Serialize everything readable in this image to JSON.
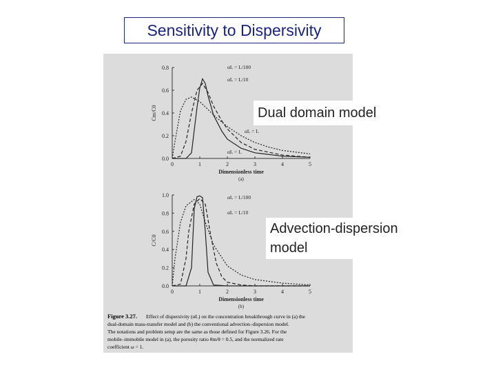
{
  "slide": {
    "title": "Sensitivity to Dispersivity",
    "callout_dual": "Dual domain model",
    "callout_adv": "Advection-dispersion model"
  },
  "figure": {
    "caption_label": "Figure 3.27.",
    "caption_lines": [
      "Effect of dispersivity (αL) on the concentration breakthrough curve in (a) the",
      "dual-domain mass-transfer model and (b) the conventional advection–dispersion model.",
      "The notations and problem setup are the same as those defined for Figure 3.26. For the",
      "mobile–immobile model in (a), the porosity ratio θm/θ = 0.5, and the normalized rate",
      "coefficient ω = 1."
    ]
  },
  "colors": {
    "title": "#1a237e",
    "scan_bg": "#dcdcdc",
    "curve": "#222222"
  },
  "chart_data": [
    {
      "type": "line",
      "panel_label": "(a)",
      "xlabel": "Dimensionless time",
      "ylabel": "Cm/C0",
      "xlim": [
        0,
        5
      ],
      "ylim": [
        0,
        0.8
      ],
      "xticks": [
        "0",
        "1",
        "2",
        "3",
        "4",
        "5"
      ],
      "yticks": [
        "0.0",
        "0.2",
        "0.4",
        "0.6",
        "0.8"
      ],
      "series": [
        {
          "name": "αL = L/100",
          "x": [
            0,
            0.5,
            0.7,
            0.9,
            1.0,
            1.1,
            1.2,
            1.3,
            1.5,
            1.8,
            2.0,
            2.5,
            3.0,
            4.0,
            5.0
          ],
          "y": [
            0,
            0.0,
            0.05,
            0.45,
            0.62,
            0.7,
            0.66,
            0.55,
            0.38,
            0.24,
            0.17,
            0.09,
            0.05,
            0.02,
            0.01
          ]
        },
        {
          "name": "αL = L/10",
          "x": [
            0,
            0.3,
            0.5,
            0.7,
            0.9,
            1.1,
            1.3,
            1.5,
            1.8,
            2.0,
            2.5,
            3.0,
            4.0,
            5.0
          ],
          "y": [
            0,
            0.02,
            0.15,
            0.4,
            0.6,
            0.66,
            0.58,
            0.46,
            0.33,
            0.26,
            0.14,
            0.08,
            0.03,
            0.01
          ]
        },
        {
          "name": "αL = L",
          "x": [
            0,
            0.1,
            0.3,
            0.5,
            0.7,
            1.0,
            1.3,
            1.6,
            2.0,
            2.5,
            3.0,
            3.5,
            4.0,
            5.0
          ],
          "y": [
            0,
            0.15,
            0.42,
            0.52,
            0.54,
            0.5,
            0.43,
            0.36,
            0.28,
            0.2,
            0.14,
            0.1,
            0.07,
            0.04
          ]
        }
      ]
    },
    {
      "type": "line",
      "panel_label": "(b)",
      "xlabel": "Dimensionless time",
      "ylabel": "C/C0",
      "xlim": [
        0,
        5
      ],
      "ylim": [
        0,
        1.0
      ],
      "xticks": [
        "0",
        "1",
        "2",
        "3",
        "4",
        "5"
      ],
      "yticks": [
        "0.0",
        "0.2",
        "0.4",
        "0.6",
        "0.8",
        "1.0"
      ],
      "series": [
        {
          "name": "αL = L/100",
          "x": [
            0,
            0.5,
            0.7,
            0.8,
            0.9,
            1.0,
            1.1,
            1.2,
            1.3,
            1.5,
            2.0,
            3.0,
            5.0
          ],
          "y": [
            0,
            0.0,
            0.2,
            0.85,
            0.98,
            0.99,
            0.97,
            0.6,
            0.15,
            0.01,
            0.0,
            0.0,
            0.0
          ]
        },
        {
          "name": "αL = L/10",
          "x": [
            0,
            0.3,
            0.5,
            0.6,
            0.8,
            1.0,
            1.2,
            1.4,
            1.6,
            1.8,
            2.0,
            2.5,
            3.0,
            5.0
          ],
          "y": [
            0,
            0.02,
            0.3,
            0.6,
            0.9,
            0.96,
            0.9,
            0.55,
            0.25,
            0.1,
            0.04,
            0.01,
            0.0,
            0.0
          ]
        },
        {
          "name": "αL = L",
          "x": [
            0,
            0.1,
            0.3,
            0.5,
            0.8,
            1.0,
            1.2,
            1.5,
            2.0,
            2.5,
            3.0,
            4.0,
            5.0
          ],
          "y": [
            0,
            0.3,
            0.7,
            0.88,
            0.95,
            0.9,
            0.7,
            0.45,
            0.22,
            0.12,
            0.07,
            0.03,
            0.01
          ]
        }
      ]
    }
  ]
}
